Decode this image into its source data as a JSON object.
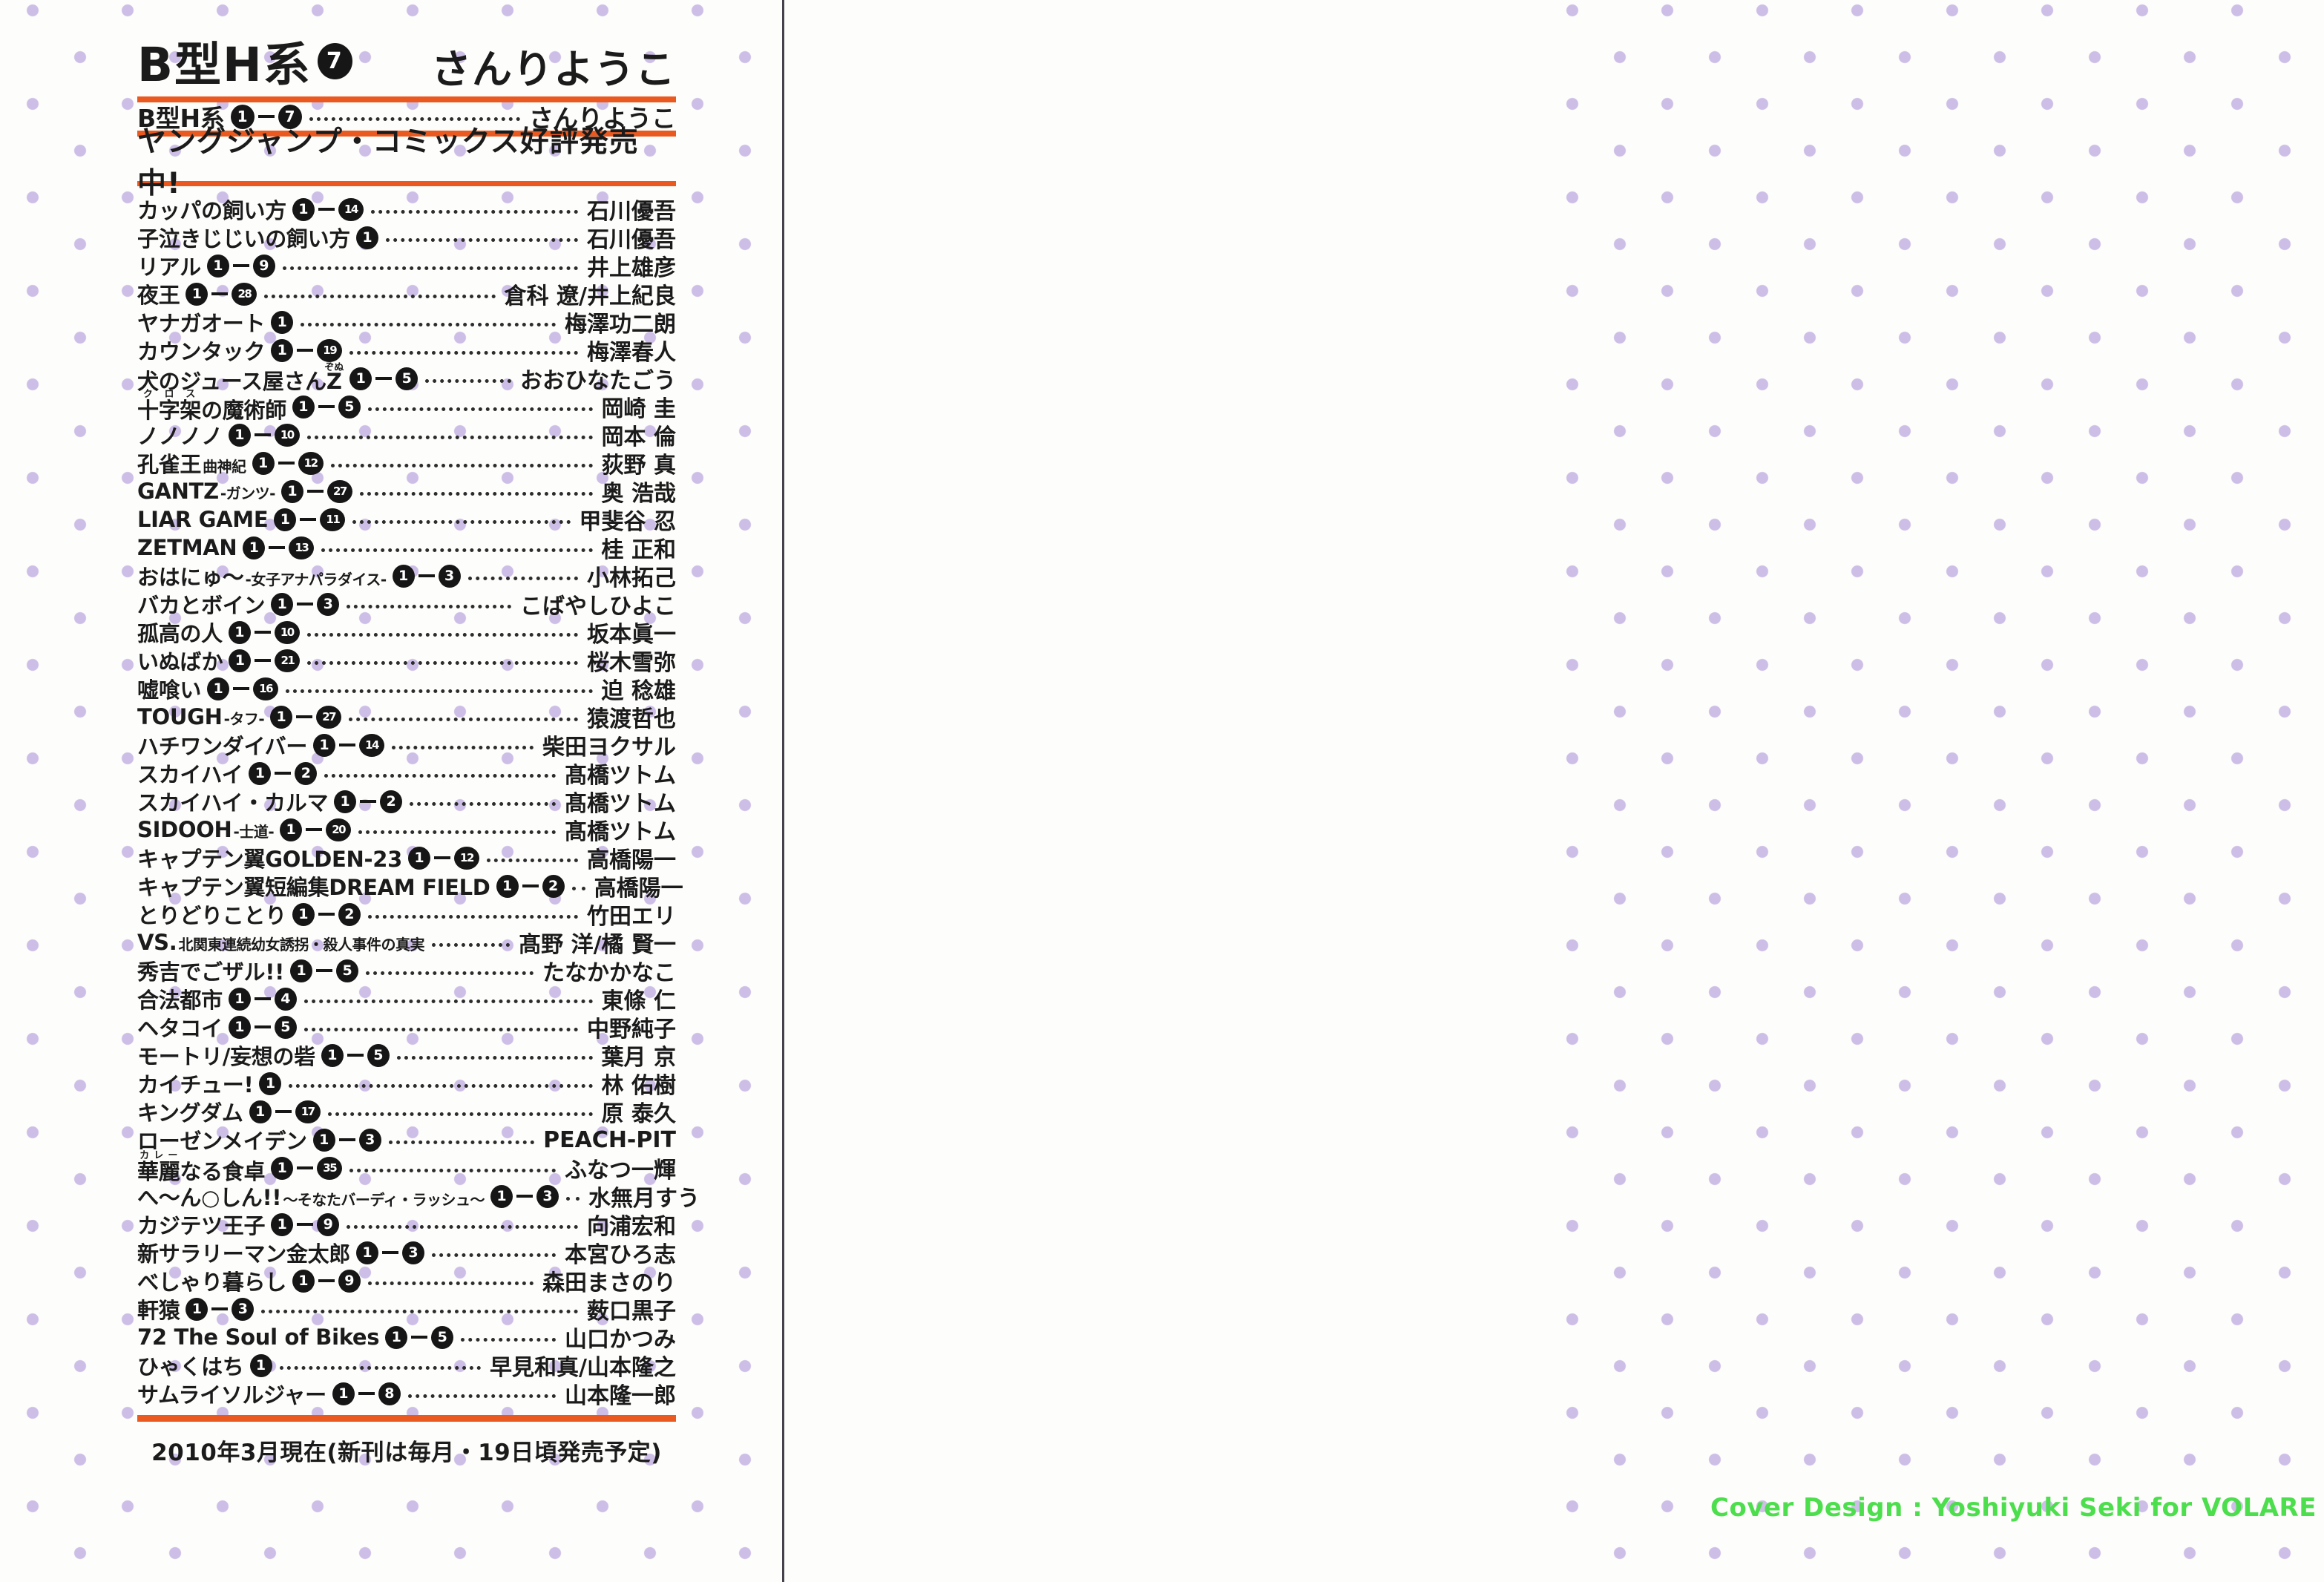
{
  "page": {
    "colors": {
      "rule_orange": "#ea5a20",
      "dot_purple": "#b098db",
      "credit_green": "#4dde4d",
      "circle_black": "#161616",
      "divider_gray": "#45424d"
    },
    "left": {
      "header": {
        "title": "B型H系",
        "title_volume": "7",
        "title_author": "さんりようこ",
        "series_row": {
          "title": "B型H系",
          "vol_start": "1",
          "vol_end": "7",
          "author": "さんりようこ"
        },
        "banner": "ヤングジャンプ・コミックス好評発売中!"
      },
      "list": {
        "rows": [
          {
            "pre": "カッパの飼い方",
            "vol_start": "1",
            "vol_end": "14",
            "author": "石川優吾"
          },
          {
            "pre": "子泣きじじいの飼い方",
            "vol_start": "1",
            "author": "石川優吾"
          },
          {
            "pre": "リアル",
            "vol_start": "1",
            "vol_end": "9",
            "author": "井上雄彦"
          },
          {
            "pre": "夜王",
            "vol_start": "1",
            "vol_end": "28",
            "author": "倉科 遼/井上紀良"
          },
          {
            "pre": "ヤナガオート",
            "vol_start": "1",
            "author": "梅澤功二朗"
          },
          {
            "pre": "カウンタック",
            "vol_start": "1",
            "vol_end": "19",
            "author": "梅澤春人"
          },
          {
            "pre": "犬のジュース屋さん",
            "ruby_base": "Z",
            "ruby_text": "ぞぬ",
            "vol_start": "1",
            "vol_end": "5",
            "author": "おおひなたごう"
          },
          {
            "ruby_base": "十字架",
            "ruby_text": "クロス",
            "post": "の魔術師",
            "vol_start": "1",
            "vol_end": "5",
            "author": "岡崎 圭"
          },
          {
            "pre": "ノノノノ",
            "vol_start": "1",
            "vol_end": "10",
            "author": "岡本 倫"
          },
          {
            "pre": "孔雀王",
            "small": "曲神紀",
            "vol_start": "1",
            "vol_end": "12",
            "author": "荻野 真"
          },
          {
            "pre": "GANTZ",
            "small": "-ガンツ-",
            "vol_start": "1",
            "vol_end": "27",
            "author": "奥 浩哉"
          },
          {
            "pre": "LIAR GAME",
            "vol_start": "1",
            "vol_end": "11",
            "author": "甲斐谷 忍"
          },
          {
            "pre": "ZETMAN",
            "vol_start": "1",
            "vol_end": "13",
            "author": "桂 正和"
          },
          {
            "pre": "おはにゅ〜",
            "small": "-女子アナパラダイス-",
            "vol_start": "1",
            "vol_end": "3",
            "author": "小林拓己"
          },
          {
            "pre": "バカとボイン",
            "vol_start": "1",
            "vol_end": "3",
            "author": "こばやしひよこ"
          },
          {
            "pre": "孤高の人",
            "vol_start": "1",
            "vol_end": "10",
            "author": "坂本眞一"
          },
          {
            "pre": "いぬばか",
            "vol_start": "1",
            "vol_end": "21",
            "author": "桜木雪弥"
          },
          {
            "pre": "嘘喰い",
            "vol_start": "1",
            "vol_end": "16",
            "author": "迫 稔雄"
          },
          {
            "pre": "TOUGH",
            "small": "-タフ-",
            "vol_start": "1",
            "vol_end": "27",
            "author": "猿渡哲也"
          },
          {
            "pre": "ハチワンダイバー",
            "vol_start": "1",
            "vol_end": "14",
            "author": "柴田ヨクサル"
          },
          {
            "pre": "スカイハイ",
            "vol_start": "1",
            "vol_end": "2",
            "author": "髙橋ツトム"
          },
          {
            "pre": "スカイハイ・カルマ",
            "vol_start": "1",
            "vol_end": "2",
            "author": "髙橋ツトム"
          },
          {
            "pre": "SIDOOH",
            "small": "-士道-",
            "vol_start": "1",
            "vol_end": "20",
            "author": "髙橋ツトム"
          },
          {
            "pre": "キャプテン翼GOLDEN-23",
            "vol_start": "1",
            "vol_end": "12",
            "author": "高橋陽一"
          },
          {
            "pre": "キャプテン翼短編集DREAM FIELD",
            "vol_start": "1",
            "vol_end": "2",
            "author": "高橋陽一"
          },
          {
            "pre": "とりどりことり",
            "vol_start": "1",
            "vol_end": "2",
            "author": "竹田エリ"
          },
          {
            "pre": "VS.",
            "small": "北関東連続幼女誘拐・殺人事件の真実",
            "author": "髙野 洋/橘 賢一"
          },
          {
            "pre": "秀吉でごザル!!",
            "vol_start": "1",
            "vol_end": "5",
            "author": "たなかかなこ"
          },
          {
            "pre": "合法都市",
            "vol_start": "1",
            "vol_end": "4",
            "author": "東條 仁"
          },
          {
            "pre": "ヘタコイ",
            "vol_start": "1",
            "vol_end": "5",
            "author": "中野純子"
          },
          {
            "pre": "モートリ/妄想の砦",
            "vol_start": "1",
            "vol_end": "5",
            "author": "葉月 京"
          },
          {
            "pre": "カイチュー!",
            "vol_start": "1",
            "author": "林 佑樹"
          },
          {
            "pre": "キングダム",
            "vol_start": "1",
            "vol_end": "17",
            "author": "原 泰久"
          },
          {
            "pre": "ローゼンメイデン",
            "vol_start": "1",
            "vol_end": "3",
            "author": "PEACH-PIT"
          },
          {
            "ruby_base": "華麗",
            "ruby_text": "カレー",
            "post": "なる食卓",
            "vol_start": "1",
            "vol_end": "35",
            "author": "ふなつ一輝"
          },
          {
            "pre": "へ〜ん○しん!!",
            "small": "〜そなたバーディ・ラッシュ〜",
            "vol_start": "1",
            "vol_end": "3",
            "author": "水無月すう"
          },
          {
            "pre": "カジテツ王子",
            "vol_start": "1",
            "vol_end": "9",
            "author": "向浦宏和"
          },
          {
            "pre": "新サラリーマン金太郎",
            "vol_start": "1",
            "vol_end": "3",
            "author": "本宮ひろ志"
          },
          {
            "pre": "べしゃり暮らし",
            "vol_start": "1",
            "vol_end": "9",
            "author": "森田まさのり"
          },
          {
            "pre": "軒猿",
            "vol_start": "1",
            "vol_end": "3",
            "author": "薮口黒子"
          },
          {
            "pre": "72 The Soul of Bikes",
            "vol_start": "1",
            "vol_end": "5",
            "author": "山口かつみ"
          },
          {
            "pre": "ひゃくはち",
            "vol_start": "1",
            "author": "早見和真/山本隆之"
          },
          {
            "pre": "サムライソルジャー",
            "vol_start": "1",
            "vol_end": "8",
            "author": "山本隆一郎"
          }
        ]
      },
      "footer": "2010年3月現在(新刊は毎月・19日頃発売予定)"
    },
    "right": {
      "credit": "Cover Design : Yoshiyuki Seki for VOLARE inc."
    }
  }
}
